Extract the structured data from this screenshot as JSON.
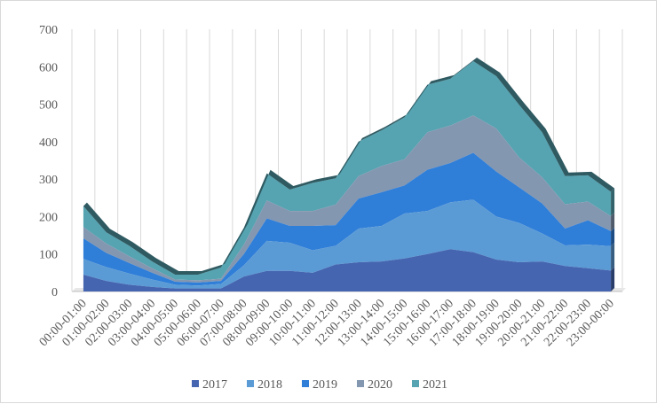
{
  "chart_data": {
    "type": "area",
    "stacked": true,
    "title": "",
    "xlabel": "",
    "ylabel": "",
    "ylim": [
      0,
      700
    ],
    "yticks": [
      0,
      100,
      200,
      300,
      400,
      500,
      600,
      700
    ],
    "grid": "vertical",
    "legend": "bottom",
    "categories": [
      "00:00-01:00",
      "01:00-02:00",
      "02:00-03:00",
      "03:00-04:00",
      "04:00-05:00",
      "05:00-06:00",
      "06:00-07:00",
      "07:00-08:00",
      "08:00-09:00",
      "09:00-10:00",
      "10:00-11:00",
      "11:00-12:00",
      "12:00-13:00",
      "13:00-14:00",
      "14:00-15:00",
      "15:00-16:00",
      "16:00-17:00",
      "17:00-18:00",
      "18:00-19:00",
      "19:00-20:00",
      "20:00-21:00",
      "21:00-22:00",
      "22:00-23:00",
      "23:00-00:00"
    ],
    "series": [
      {
        "name": "2017",
        "color": "#4565b0",
        "values": [
          45,
          28,
          18,
          12,
          8,
          8,
          8,
          40,
          55,
          55,
          50,
          72,
          78,
          80,
          88,
          100,
          113,
          105,
          85,
          78,
          80,
          68,
          62,
          56
        ]
      },
      {
        "name": "2018",
        "color": "#5b9bd5",
        "values": [
          42,
          37,
          30,
          20,
          10,
          8,
          12,
          30,
          80,
          75,
          60,
          50,
          90,
          95,
          120,
          115,
          125,
          140,
          115,
          105,
          75,
          55,
          63,
          65
        ]
      },
      {
        "name": "2019",
        "color": "#2f7ed8",
        "values": [
          55,
          38,
          28,
          18,
          8,
          8,
          8,
          30,
          60,
          45,
          65,
          55,
          80,
          90,
          75,
          110,
          105,
          125,
          120,
          95,
          80,
          45,
          65,
          40
        ]
      },
      {
        "name": "2020",
        "color": "#8497b0",
        "values": [
          30,
          25,
          18,
          12,
          6,
          6,
          6,
          25,
          48,
          40,
          40,
          55,
          60,
          70,
          70,
          100,
          100,
          100,
          115,
          80,
          70,
          65,
          50,
          40
        ]
      },
      {
        "name": "2021",
        "color": "#56a3b1",
        "values": [
          56,
          30,
          28,
          18,
          13,
          15,
          30,
          45,
          72,
          57,
          75,
          70,
          92,
          95,
          112,
          127,
          125,
          145,
          140,
          140,
          120,
          75,
          70,
          65
        ]
      }
    ]
  }
}
